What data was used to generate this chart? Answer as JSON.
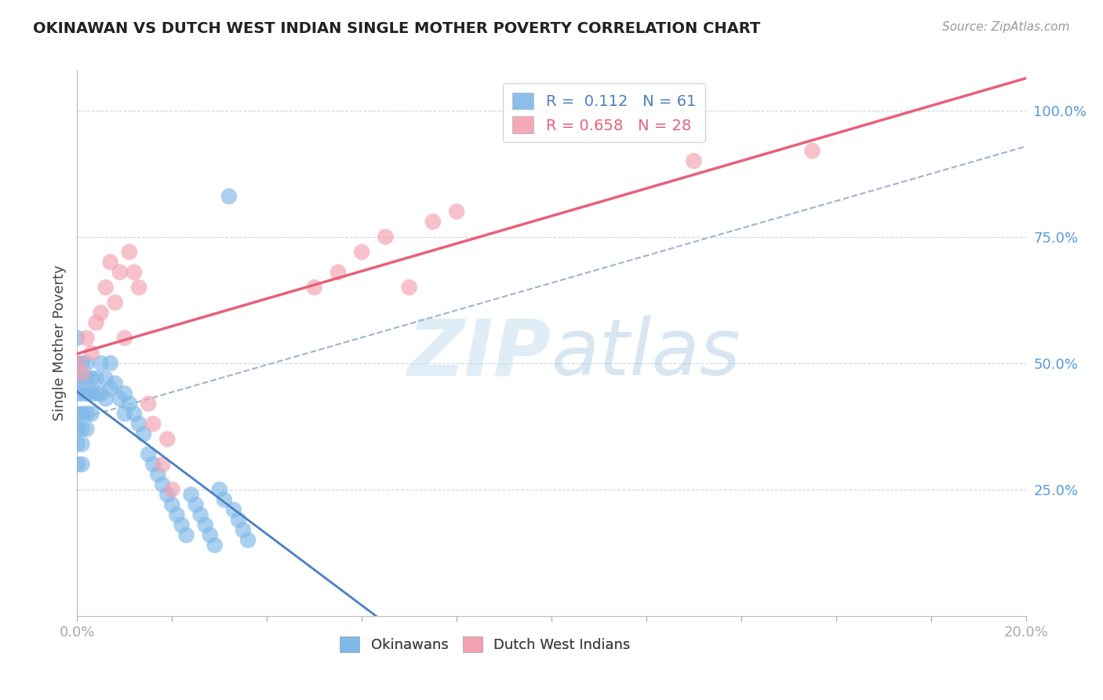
{
  "title": "OKINAWAN VS DUTCH WEST INDIAN SINGLE MOTHER POVERTY CORRELATION CHART",
  "source": "Source: ZipAtlas.com",
  "ylabel": "Single Mother Poverty",
  "ytick_labels": [
    "25.0%",
    "50.0%",
    "75.0%",
    "100.0%"
  ],
  "ytick_values": [
    0.25,
    0.5,
    0.75,
    1.0
  ],
  "xmin": 0.0,
  "xmax": 0.2,
  "ymin": 0.0,
  "ymax": 1.08,
  "legend_r1": "R =  0.112",
  "legend_n1": "N = 61",
  "legend_r2": "R = 0.658",
  "legend_n2": "N = 28",
  "color_okinawan": "#7eb8e8",
  "color_dwi": "#f4a0b0",
  "color_line_okinawan": "#4a7fc0",
  "color_line_dwi": "#e8607a",
  "color_trendline_dashed": "#a0b4cc",
  "okinawan_x": [
    0.0,
    0.0,
    0.0,
    0.0,
    0.0,
    0.0,
    0.0,
    0.0,
    0.001,
    0.001,
    0.001,
    0.001,
    0.001,
    0.001,
    0.001,
    0.002,
    0.002,
    0.002,
    0.002,
    0.002,
    0.003,
    0.003,
    0.003,
    0.004,
    0.004,
    0.005,
    0.005,
    0.006,
    0.006,
    0.007,
    0.007,
    0.008,
    0.009,
    0.01,
    0.01,
    0.011,
    0.012,
    0.013,
    0.014,
    0.015,
    0.016,
    0.017,
    0.018,
    0.019,
    0.02,
    0.021,
    0.022,
    0.023,
    0.024,
    0.025,
    0.026,
    0.027,
    0.028,
    0.029,
    0.03,
    0.031,
    0.032,
    0.033,
    0.034,
    0.035,
    0.036
  ],
  "okinawan_y": [
    0.55,
    0.5,
    0.47,
    0.44,
    0.4,
    0.37,
    0.34,
    0.3,
    0.5,
    0.47,
    0.44,
    0.4,
    0.37,
    0.34,
    0.3,
    0.5,
    0.47,
    0.44,
    0.4,
    0.37,
    0.47,
    0.44,
    0.4,
    0.47,
    0.44,
    0.5,
    0.44,
    0.47,
    0.43,
    0.5,
    0.45,
    0.46,
    0.43,
    0.44,
    0.4,
    0.42,
    0.4,
    0.38,
    0.36,
    0.32,
    0.3,
    0.28,
    0.26,
    0.24,
    0.22,
    0.2,
    0.18,
    0.16,
    0.24,
    0.22,
    0.2,
    0.18,
    0.16,
    0.14,
    0.25,
    0.23,
    0.83,
    0.21,
    0.19,
    0.17,
    0.15
  ],
  "dwi_x": [
    0.0,
    0.001,
    0.002,
    0.003,
    0.004,
    0.005,
    0.006,
    0.007,
    0.008,
    0.009,
    0.01,
    0.011,
    0.012,
    0.013,
    0.015,
    0.016,
    0.018,
    0.019,
    0.02,
    0.05,
    0.055,
    0.06,
    0.065,
    0.07,
    0.075,
    0.08,
    0.13,
    0.155
  ],
  "dwi_y": [
    0.5,
    0.48,
    0.55,
    0.52,
    0.58,
    0.6,
    0.65,
    0.7,
    0.62,
    0.68,
    0.55,
    0.72,
    0.68,
    0.65,
    0.42,
    0.38,
    0.3,
    0.35,
    0.25,
    0.65,
    0.68,
    0.72,
    0.75,
    0.65,
    0.78,
    0.8,
    0.9,
    0.92
  ]
}
